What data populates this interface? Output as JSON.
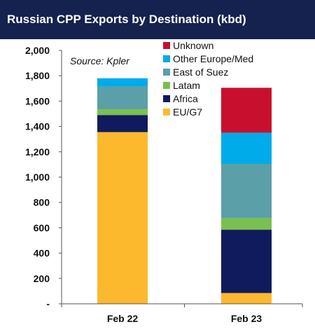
{
  "title": "Russian CPP Exports by Destination (kbd)",
  "source": "Source: Kpler",
  "chart_data": {
    "type": "bar",
    "stacked": true,
    "title": "Russian CPP Exports by Destination (kbd)",
    "xlabel": "",
    "ylabel": "",
    "categories": [
      "Feb 22",
      "Feb 23"
    ],
    "ylim": [
      0,
      2000
    ],
    "y_ticks": [
      0,
      200,
      400,
      600,
      800,
      1000,
      1200,
      1400,
      1600,
      1800,
      2000
    ],
    "y_tick_labels": [
      "-",
      "200",
      "400",
      "600",
      "800",
      "1,000",
      "1,200",
      "1,400",
      "1,600",
      "1,800",
      "2,000"
    ],
    "legend_position": "top-center",
    "grid": false,
    "series": [
      {
        "name": "EU/G7",
        "color": "#fdb92d",
        "values": [
          1355,
          85
        ]
      },
      {
        "name": "Africa",
        "color": "#0f1b5c",
        "values": [
          135,
          500
        ]
      },
      {
        "name": "Latam",
        "color": "#7ac04d",
        "values": [
          45,
          90
        ]
      },
      {
        "name": "East of Suez",
        "color": "#5b9fa8",
        "values": [
          180,
          430
        ]
      },
      {
        "name": "Other Europe/Med",
        "color": "#00abea",
        "values": [
          65,
          245
        ]
      },
      {
        "name": "Unknown",
        "color": "#c8102e",
        "values": [
          0,
          355
        ]
      }
    ]
  }
}
